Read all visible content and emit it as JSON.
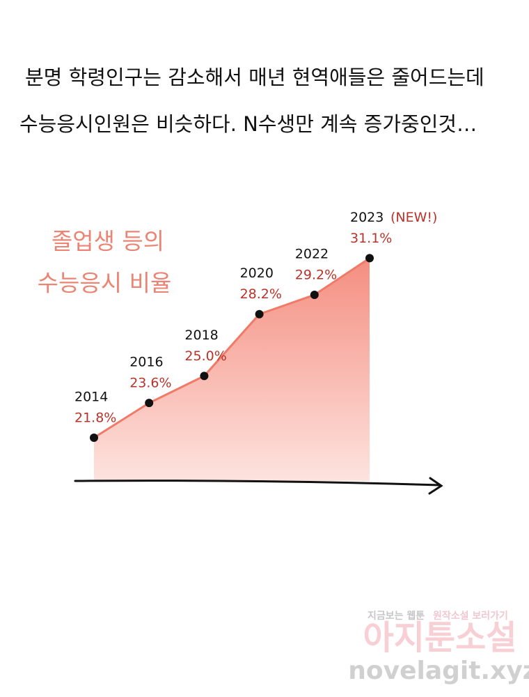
{
  "caption": [
    "분명 학령인구는 감소해서 매년 현역애들은 줄어드는데",
    "수능응시인원은 비슷하다. N수생만 계속 증가중인것…"
  ],
  "chart_data": {
    "type": "area",
    "title": [
      "졸업생 등의",
      "수능응시 비율"
    ],
    "categories": [
      "2014",
      "2016",
      "2018",
      "2020",
      "2022",
      "2023"
    ],
    "values": [
      21.8,
      23.6,
      25.0,
      28.2,
      29.2,
      31.1
    ],
    "value_labels": [
      "21.8%",
      "23.6%",
      "25.0%",
      "28.2%",
      "29.2%",
      "31.1%"
    ],
    "annotations": [
      "(NEW!)"
    ],
    "color": "#f07a68"
  },
  "watermark": {
    "line1a": "지금보는 웹툰",
    "line1b": "원작소설 보러가기",
    "brand": "아지툰소설",
    "url": "novelagit.xyz"
  }
}
